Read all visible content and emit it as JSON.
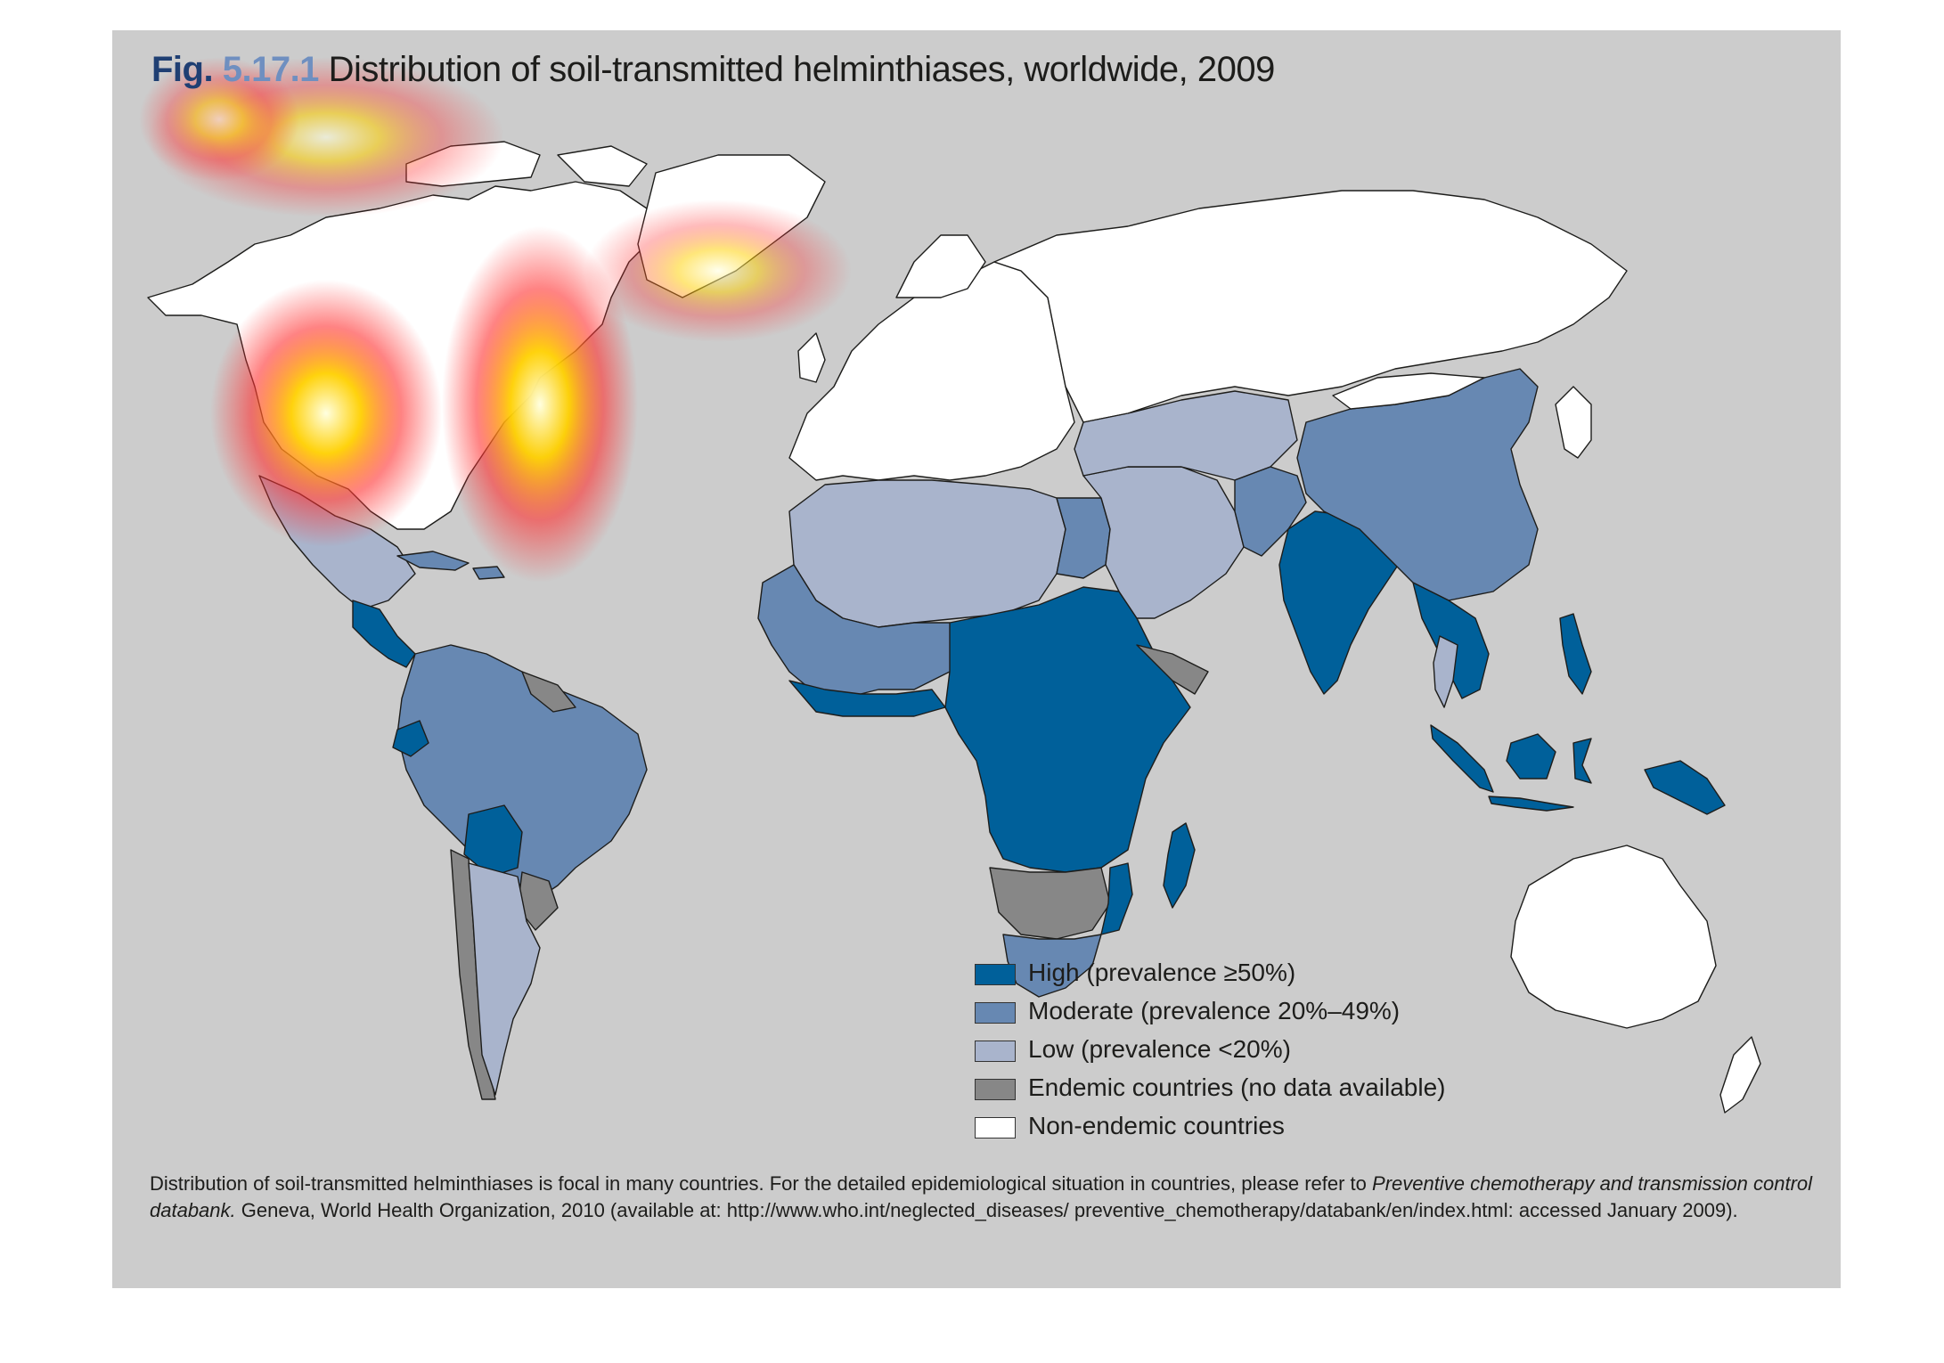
{
  "figure": {
    "label": "Fig.",
    "number": "5.17.1",
    "title": "Distribution of soil-transmitted helminthiases, worldwide, 2009"
  },
  "colors": {
    "high": "#00609a",
    "moderate": "#6788b2",
    "low": "#a9b4cc",
    "endemic_no_data": "#878787",
    "non_endemic": "#ffffff",
    "ocean": "#cccccc",
    "border": "#1d1d1b",
    "heat_core": "#ffffe0",
    "heat_mid": "#ffd000",
    "heat_outer": "#ff3030"
  },
  "legend": [
    {
      "key": "high",
      "label": "High (prevalence ≥50%)"
    },
    {
      "key": "moderate",
      "label": "Moderate (prevalence 20%–49%)"
    },
    {
      "key": "low",
      "label": "Low (prevalence <20%)"
    },
    {
      "key": "endemic_no_data",
      "label": "Endemic countries (no data available)"
    },
    {
      "key": "non_endemic",
      "label": "Non-endemic countries"
    }
  ],
  "footnote": {
    "text_before": "Distribution of soil-transmitted helminthiases is focal in many countries. For the detailed epidemiological situation in countries, please refer to ",
    "italic": "Preventive chemotherapy and transmission control databank.",
    "text_after": " Geneva, World Health Organization, 2010 (available at: http://www.who.int/neglected_diseases/ preventive_chemotherapy/databank/en/index.html: accessed January 2009)."
  },
  "map": {
    "regions": [
      {
        "name": "north-america",
        "category": "non_endemic"
      },
      {
        "name": "greenland",
        "category": "non_endemic"
      },
      {
        "name": "mexico",
        "category": "low"
      },
      {
        "name": "central-america",
        "category": "high"
      },
      {
        "name": "caribbean",
        "category": "moderate"
      },
      {
        "name": "colombia-venezuela-peru-brazil",
        "category": "moderate"
      },
      {
        "name": "ecuador",
        "category": "high"
      },
      {
        "name": "bolivia",
        "category": "high"
      },
      {
        "name": "guianas",
        "category": "endemic_no_data"
      },
      {
        "name": "chile",
        "category": "endemic_no_data"
      },
      {
        "name": "argentina",
        "category": "low"
      },
      {
        "name": "paraguay-uruguay",
        "category": "endemic_no_data"
      },
      {
        "name": "europe",
        "category": "non_endemic"
      },
      {
        "name": "russia",
        "category": "non_endemic"
      },
      {
        "name": "north-africa",
        "category": "low"
      },
      {
        "name": "egypt",
        "category": "moderate"
      },
      {
        "name": "west-africa",
        "category": "moderate"
      },
      {
        "name": "gulf-of-guinea",
        "category": "high"
      },
      {
        "name": "central-east-africa",
        "category": "high"
      },
      {
        "name": "horn-of-africa",
        "category": "endemic_no_data"
      },
      {
        "name": "southern-africa-grey",
        "category": "endemic_no_data"
      },
      {
        "name": "south-africa",
        "category": "moderate"
      },
      {
        "name": "mozambique",
        "category": "high"
      },
      {
        "name": "madagascar",
        "category": "high"
      },
      {
        "name": "middle-east",
        "category": "low"
      },
      {
        "name": "central-asia",
        "category": "low"
      },
      {
        "name": "afghanistan-pakistan",
        "category": "moderate"
      },
      {
        "name": "india",
        "category": "high"
      },
      {
        "name": "china",
        "category": "moderate"
      },
      {
        "name": "mongolia",
        "category": "non_endemic"
      },
      {
        "name": "southeast-asia",
        "category": "high"
      },
      {
        "name": "thailand",
        "category": "low"
      },
      {
        "name": "indonesia",
        "category": "high"
      },
      {
        "name": "philippines",
        "category": "high"
      },
      {
        "name": "papua-new-guinea",
        "category": "high"
      },
      {
        "name": "japan-korea",
        "category": "non_endemic"
      },
      {
        "name": "australia",
        "category": "non_endemic"
      },
      {
        "name": "new-zealand",
        "category": "non_endemic"
      }
    ],
    "heat_spots": [
      {
        "name": "north-america-west",
        "intensity": 1.0
      },
      {
        "name": "north-america-east",
        "intensity": 1.0
      },
      {
        "name": "canada-arctic",
        "intensity": 0.6
      },
      {
        "name": "greenland-south",
        "intensity": 0.55
      },
      {
        "name": "title-area",
        "intensity": 0.55
      }
    ]
  }
}
